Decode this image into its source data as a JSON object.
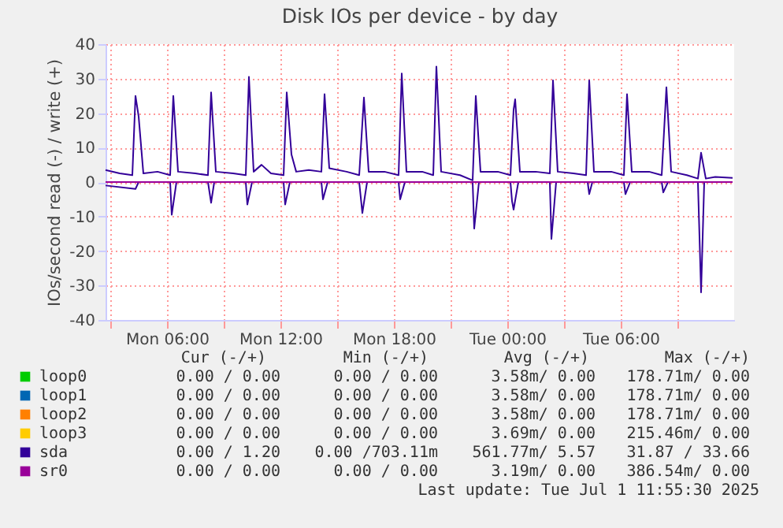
{
  "chart_data": {
    "type": "line",
    "title": "Disk IOs per device - by day",
    "ylabel": "IOs/second read (-) / write (+)",
    "xlim": [
      "2025-06-30T02:45",
      "2025-07-01T12:00"
    ],
    "xticks": [
      {
        "value": "2025-06-30T03:00",
        "label": null
      },
      {
        "value": "2025-06-30T06:00",
        "label": "Mon 06:00"
      },
      {
        "value": "2025-06-30T09:00",
        "label": null
      },
      {
        "value": "2025-06-30T12:00",
        "label": "Mon 12:00"
      },
      {
        "value": "2025-06-30T15:00",
        "label": null
      },
      {
        "value": "2025-06-30T18:00",
        "label": "Mon 18:00"
      },
      {
        "value": "2025-06-30T21:00",
        "label": null
      },
      {
        "value": "2025-07-01T00:00",
        "label": "Tue 00:00"
      },
      {
        "value": "2025-07-01T03:00",
        "label": null
      },
      {
        "value": "2025-07-01T06:00",
        "label": "Tue 06:00"
      },
      {
        "value": "2025-07-01T09:00",
        "label": null
      }
    ],
    "ylim": [
      -40,
      40
    ],
    "yticks": [
      -40,
      -30,
      -20,
      -10,
      0,
      10,
      20,
      30,
      40
    ],
    "grid": true,
    "legend": "bottom",
    "marker": "none",
    "line_style": "solid",
    "series": [
      {
        "name": "loop0",
        "color": "#00cc00"
      },
      {
        "name": "loop1",
        "color": "#0066b3"
      },
      {
        "name": "loop2",
        "color": "#ff8000"
      },
      {
        "name": "loop3",
        "color": "#ffcc00"
      },
      {
        "name": "sda",
        "color": "#330099",
        "x": [
          "2025-06-30T02:45",
          "2025-06-30T03:30",
          "2025-06-30T04:10",
          "2025-06-30T04:20",
          "2025-06-30T04:30",
          "2025-06-30T04:45",
          "2025-06-30T05:30",
          "2025-06-30T06:10",
          "2025-06-30T06:20",
          "2025-06-30T06:35",
          "2025-06-30T07:30",
          "2025-06-30T08:10",
          "2025-06-30T08:20",
          "2025-06-30T08:35",
          "2025-06-30T09:30",
          "2025-06-30T10:10",
          "2025-06-30T10:20",
          "2025-06-30T10:35",
          "2025-06-30T11:00",
          "2025-06-30T11:30",
          "2025-06-30T12:10",
          "2025-06-30T12:20",
          "2025-06-30T12:35",
          "2025-06-30T12:50",
          "2025-06-30T13:30",
          "2025-06-30T14:10",
          "2025-06-30T14:20",
          "2025-06-30T14:35",
          "2025-06-30T15:30",
          "2025-06-30T16:10",
          "2025-06-30T16:25",
          "2025-06-30T16:40",
          "2025-06-30T17:30",
          "2025-06-30T18:15",
          "2025-06-30T18:25",
          "2025-06-30T18:40",
          "2025-06-30T19:30",
          "2025-06-30T20:05",
          "2025-06-30T20:15",
          "2025-06-30T20:30",
          "2025-06-30T21:30",
          "2025-06-30T22:10",
          "2025-06-30T22:20",
          "2025-06-30T22:35",
          "2025-06-30T23:30",
          "2025-07-01T00:10",
          "2025-07-01T00:20",
          "2025-07-01T00:25",
          "2025-07-01T00:40",
          "2025-07-01T01:30",
          "2025-07-01T02:15",
          "2025-07-01T02:25",
          "2025-07-01T02:40",
          "2025-07-01T03:30",
          "2025-07-01T04:10",
          "2025-07-01T04:20",
          "2025-07-01T04:35",
          "2025-07-01T05:30",
          "2025-07-01T06:10",
          "2025-07-01T06:20",
          "2025-07-01T06:35",
          "2025-07-01T07:30",
          "2025-07-01T08:10",
          "2025-07-01T08:25",
          "2025-07-01T08:40",
          "2025-07-01T09:30",
          "2025-07-01T10:05",
          "2025-07-01T10:15",
          "2025-07-01T10:30",
          "2025-07-01T11:00",
          "2025-07-01T11:55"
        ],
        "values": [
          3.5,
          2.5,
          2,
          25,
          19,
          2.5,
          3,
          2,
          25,
          3,
          2.5,
          2,
          26,
          3,
          2.5,
          2,
          30.5,
          3,
          5,
          2.5,
          2,
          26,
          8,
          3,
          3.5,
          3,
          25.5,
          4,
          3,
          2,
          24.5,
          3,
          3,
          2,
          31.5,
          3,
          3,
          2,
          33.5,
          3,
          2,
          0.5,
          25,
          3,
          3,
          2,
          21,
          24,
          3,
          3,
          2.5,
          29.5,
          3,
          2.5,
          2,
          29.5,
          3,
          3,
          2,
          25.5,
          3,
          3,
          2,
          27.5,
          3,
          2,
          1,
          8.5,
          1,
          1.5,
          1.2
        ]
      },
      {
        "color": "#330099",
        "x": [
          "2025-06-30T02:45",
          "2025-06-30T04:20",
          "2025-06-30T04:30",
          "2025-06-30T06:10",
          "2025-06-30T06:15",
          "2025-06-30T06:30",
          "2025-06-30T08:10",
          "2025-06-30T08:20",
          "2025-06-30T08:30",
          "2025-06-30T10:10",
          "2025-06-30T10:15",
          "2025-06-30T10:30",
          "2025-06-30T12:10",
          "2025-06-30T12:15",
          "2025-06-30T12:30",
          "2025-06-30T14:10",
          "2025-06-30T14:15",
          "2025-06-30T14:30",
          "2025-06-30T16:10",
          "2025-06-30T16:20",
          "2025-06-30T16:35",
          "2025-06-30T18:15",
          "2025-06-30T18:20",
          "2025-06-30T18:35",
          "2025-06-30T22:10",
          "2025-06-30T22:15",
          "2025-06-30T22:30",
          "2025-07-01T00:10",
          "2025-07-01T00:15",
          "2025-07-01T00:20",
          "2025-07-01T00:35",
          "2025-07-01T02:15",
          "2025-07-01T02:20",
          "2025-07-01T02:35",
          "2025-07-01T04:15",
          "2025-07-01T04:20",
          "2025-07-01T04:30",
          "2025-07-01T06:10",
          "2025-07-01T06:15",
          "2025-07-01T06:30",
          "2025-07-01T08:10",
          "2025-07-01T08:15",
          "2025-07-01T08:30",
          "2025-07-01T10:05",
          "2025-07-01T10:15",
          "2025-07-01T10:25",
          "2025-07-01T11:55"
        ],
        "values": [
          -1,
          -2,
          0,
          0,
          -9.5,
          0,
          0,
          -6,
          0,
          0,
          -6.5,
          0,
          0,
          -6.5,
          0,
          0,
          -5,
          0,
          0,
          -9,
          0,
          0,
          -5,
          0,
          0,
          -13.5,
          0,
          0,
          -5.5,
          -8,
          0,
          0,
          -16.5,
          0,
          0,
          -3.5,
          0,
          0,
          -3.5,
          0,
          0,
          -3,
          0,
          0,
          -32,
          0,
          0
        ]
      },
      {
        "name": "sr0",
        "color": "#990099",
        "x": [
          "2025-06-30T02:45",
          "2025-07-01T11:55"
        ],
        "values": [
          0,
          0
        ]
      }
    ],
    "annotations": [
      "Cur (-/+)",
      "Min (-/+)",
      "Avg (-/+)",
      "Max (-/+)",
      "0.00 /  0.00",
      "0.00 /  0.00",
      "3.58m/  0.00",
      "178.71m/  0.00",
      "0.00 /  0.00",
      "0.00 /  0.00",
      "3.58m/  0.00",
      "178.71m/  0.00",
      "0.00 /  0.00",
      "0.00 /  0.00",
      "3.58m/  0.00",
      "178.71m/  0.00",
      "0.00 /  0.00",
      "0.00 /  0.00",
      "3.69m/  0.00",
      "215.46m/  0.00",
      "0.00 /  1.20",
      "0.00 /703.11m",
      "561.77m/  5.57",
      "31.87 / 33.66",
      "0.00 /  0.00",
      "0.00 /  0.00",
      "3.19m/  0.00",
      "386.54m/  0.00",
      "Last update: Tue Jul  1 11:55:30 2025"
    ]
  }
}
